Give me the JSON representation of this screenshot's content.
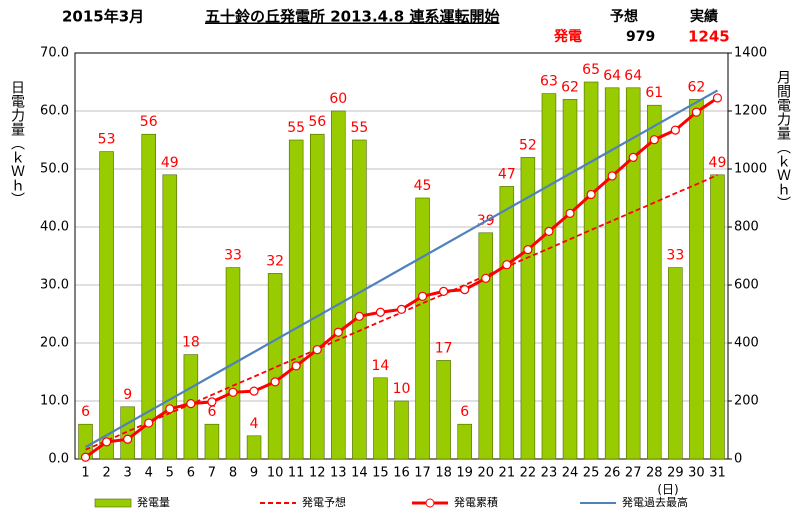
{
  "header": {
    "month": "2015年3月",
    "plant": "五十鈴の丘発電所  2013.4.8  連系運転開始",
    "forecast_head": "予想",
    "actual_head": "実績",
    "row_label": "発電",
    "forecast_value": "979",
    "actual_value": "1245"
  },
  "chart_data": {
    "type": "bar",
    "categories": [
      "1",
      "2",
      "3",
      "4",
      "5",
      "6",
      "7",
      "8",
      "9",
      "10",
      "11",
      "12",
      "13",
      "14",
      "15",
      "16",
      "17",
      "18",
      "19",
      "20",
      "21",
      "22",
      "23",
      "24",
      "25",
      "26",
      "27",
      "28",
      "29",
      "30",
      "31"
    ],
    "x_unit": "(日)",
    "ylabel": "日電力量（ｋＷｈ）",
    "y2label": "月間電力量（ｋＷｈ）",
    "ylim": [
      0,
      70
    ],
    "yticks": [
      {
        "value": 0,
        "label": "0.0"
      },
      {
        "value": 10,
        "label": "10.0"
      },
      {
        "value": 20,
        "label": "20.0"
      },
      {
        "value": 30,
        "label": "30.0"
      },
      {
        "value": 40,
        "label": "40.0"
      },
      {
        "value": 50,
        "label": "50.0"
      },
      {
        "value": 60,
        "label": "60.0"
      },
      {
        "value": 70,
        "label": "70.0"
      }
    ],
    "y2lim": [
      0,
      1400
    ],
    "y2ticks": [
      0,
      200,
      400,
      600,
      800,
      1000,
      1200,
      1400
    ],
    "grid": true,
    "series": [
      {
        "name": "発電量",
        "type": "bar",
        "color": "#99cc00",
        "data_labels": true,
        "values": [
          6,
          53,
          9,
          56,
          49,
          18,
          6,
          33,
          4,
          32,
          55,
          56,
          60,
          55,
          14,
          10,
          45,
          17,
          6,
          39,
          47,
          52,
          63,
          62,
          65,
          64,
          64,
          61,
          33,
          62,
          49
        ]
      },
      {
        "name": "発電予想",
        "type": "line",
        "axis": "y2",
        "color": "#ff0000",
        "dashed": true,
        "values": [
          32,
          63,
          95,
          126,
          158,
          189,
          221,
          253,
          284,
          316,
          347,
          379,
          411,
          442,
          474,
          505,
          537,
          568,
          600,
          632,
          663,
          695,
          726,
          758,
          790,
          821,
          853,
          884,
          916,
          947,
          979
        ]
      },
      {
        "name": "発電累積",
        "type": "line",
        "axis": "y2",
        "color": "#ff0000",
        "markers": true,
        "values": [
          6,
          59,
          68,
          124,
          173,
          191,
          197,
          230,
          234,
          266,
          321,
          377,
          437,
          492,
          506,
          516,
          561,
          578,
          584,
          623,
          670,
          722,
          785,
          847,
          912,
          976,
          1040,
          1101,
          1134,
          1196,
          1245
        ]
      },
      {
        "name": "発電過去最高",
        "type": "line",
        "axis": "y2",
        "color": "#4f81bd",
        "values": [
          41,
          82,
          123,
          164,
          205,
          246,
          287,
          328,
          369,
          410,
          451,
          492,
          533,
          574,
          615,
          656,
          697,
          738,
          779,
          820,
          861,
          902,
          943,
          984,
          1025,
          1066,
          1107,
          1148,
          1189,
          1230,
          1271
        ]
      }
    ]
  }
}
